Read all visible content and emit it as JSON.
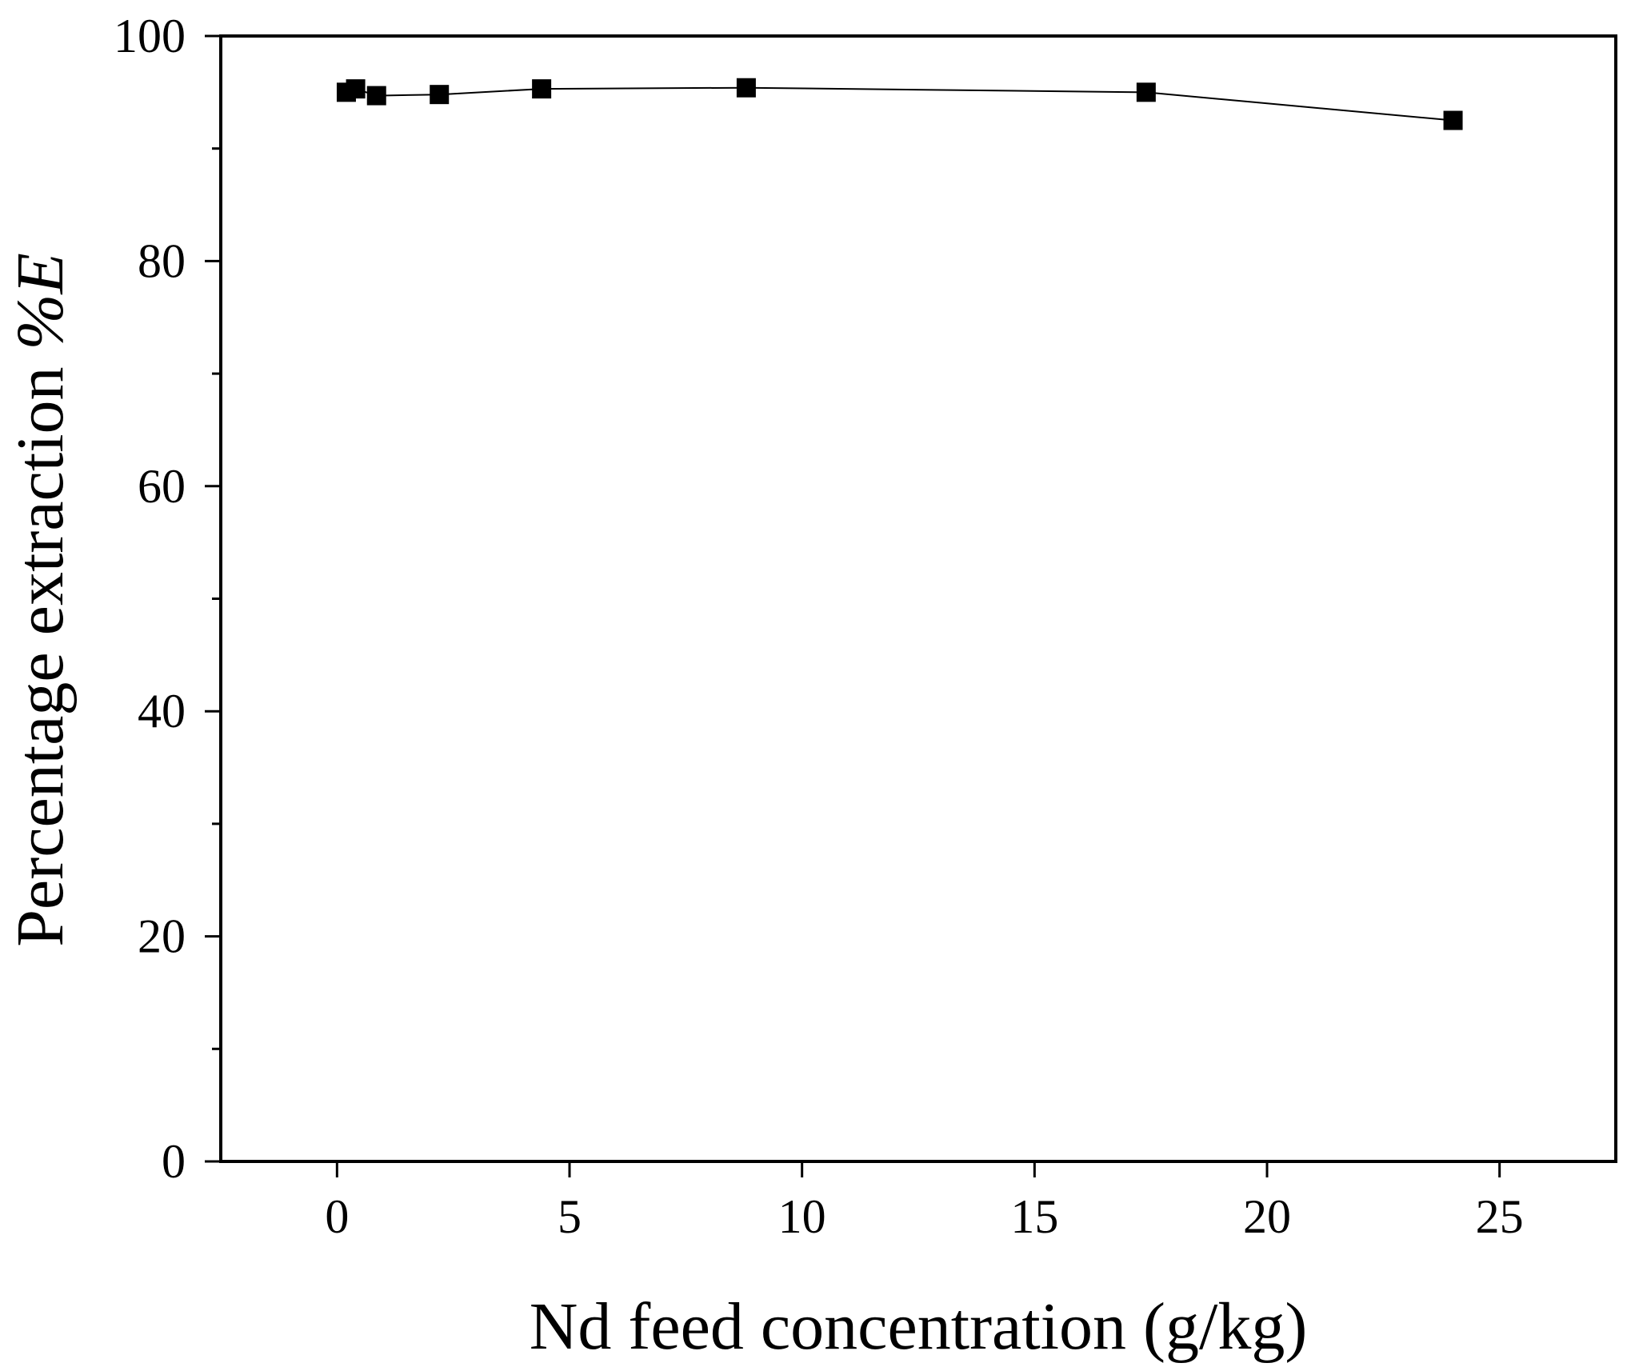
{
  "chart_data": {
    "type": "line",
    "title": "",
    "xlabel": "Nd feed concentration (g/kg)",
    "ylabel": "Percentage extraction",
    "ylabel_symbol": "%E",
    "xlim": [
      -2.5,
      27.5
    ],
    "ylim": [
      0,
      100
    ],
    "x_ticks": [
      0,
      5,
      10,
      15,
      20,
      25
    ],
    "y_ticks": [
      0,
      20,
      40,
      60,
      80,
      100
    ],
    "y_minor_ticks": [
      10,
      30,
      50,
      70,
      90
    ],
    "grid": false,
    "marker": "square",
    "color": "#000000",
    "series": [
      {
        "x": [
          0.2,
          0.4,
          0.85,
          2.2,
          4.4,
          8.8,
          17.4,
          24.0
        ],
        "y": [
          95.0,
          95.3,
          94.7,
          94.8,
          95.3,
          95.4,
          95.0,
          92.5
        ]
      }
    ]
  }
}
